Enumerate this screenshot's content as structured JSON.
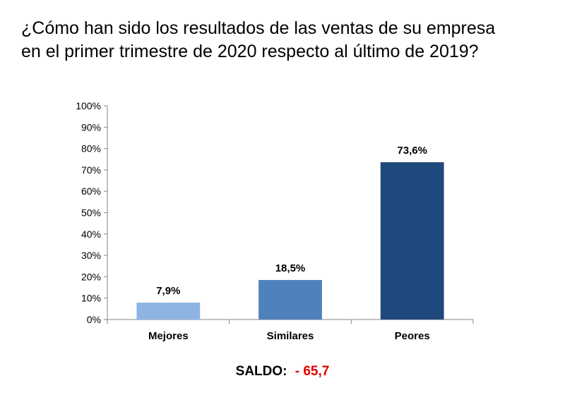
{
  "title_lines": [
    "¿Cómo han sido los resultados de las ventas de su empresa",
    "en el primer trimestre de 2020 respecto al último de 2019?"
  ],
  "chart_data": {
    "type": "bar",
    "title": "¿Cómo han sido los resultados de las ventas de su empresa en el primer trimestre de 2020 respecto al último de 2019?",
    "categories": [
      "Mejores",
      "Similares",
      "Peores"
    ],
    "values": [
      7.9,
      18.5,
      73.6
    ],
    "data_labels": [
      "7,9%",
      "18,5%",
      "73,6%"
    ],
    "colors": [
      "#8eb4e3",
      "#4f81bd",
      "#1f497d"
    ],
    "ylim": [
      0,
      100
    ],
    "yticks": [
      0,
      10,
      20,
      30,
      40,
      50,
      60,
      70,
      80,
      90,
      100
    ],
    "ytick_labels": [
      "0%",
      "10%",
      "20%",
      "30%",
      "40%",
      "50%",
      "60%",
      "70%",
      "80%",
      "90%",
      "100%"
    ],
    "xlabel": "",
    "ylabel": "",
    "grid": false,
    "legend": "none"
  },
  "footer": {
    "saldo_label": "SALDO:",
    "saldo_value": "- 65,7"
  }
}
